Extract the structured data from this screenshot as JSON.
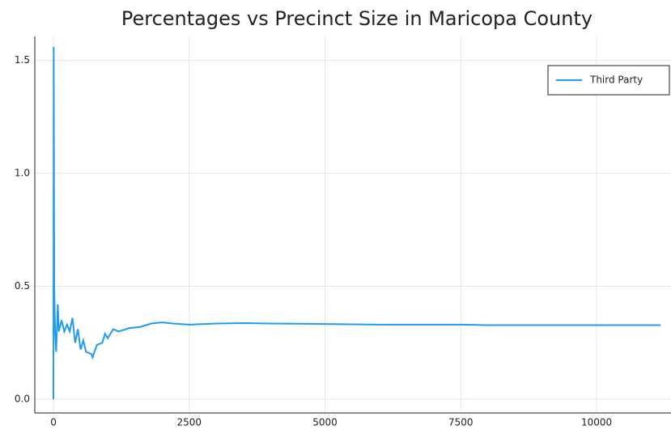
{
  "chart_data": {
    "type": "line",
    "title": "Percentages vs Precinct Size in Maricopa County",
    "x": [
      0,
      5,
      15,
      30,
      50,
      80,
      100,
      150,
      200,
      250,
      300,
      350,
      400,
      450,
      500,
      550,
      600,
      700,
      720,
      800,
      900,
      950,
      1000,
      1100,
      1200,
      1400,
      1600,
      1800,
      2000,
      2200,
      2500,
      3000,
      3500,
      4000,
      5000,
      6000,
      7500,
      8000,
      10000,
      11180
    ],
    "series": [
      {
        "name": "Third Party",
        "color": "#1f9bf0",
        "values": [
          0.0,
          1.56,
          0.5,
          0.3,
          0.21,
          0.42,
          0.3,
          0.35,
          0.3,
          0.33,
          0.3,
          0.36,
          0.25,
          0.31,
          0.22,
          0.26,
          0.21,
          0.2,
          0.185,
          0.24,
          0.25,
          0.29,
          0.27,
          0.31,
          0.3,
          0.315,
          0.32,
          0.335,
          0.34,
          0.335,
          0.33,
          0.335,
          0.337,
          0.335,
          0.333,
          0.33,
          0.33,
          0.328,
          0.328,
          0.328
        ]
      }
    ],
    "xlim": [
      -343,
      11370
    ],
    "ylim": [
      -0.061,
      1.606
    ],
    "xticks": [
      0,
      2500,
      5000,
      7500,
      10000
    ],
    "yticks": [
      {
        "value": 0,
        "label": "0.0"
      },
      0.5,
      {
        "value": 1,
        "label": "1.0"
      },
      1.5
    ],
    "grid": true,
    "legend": "top right"
  }
}
